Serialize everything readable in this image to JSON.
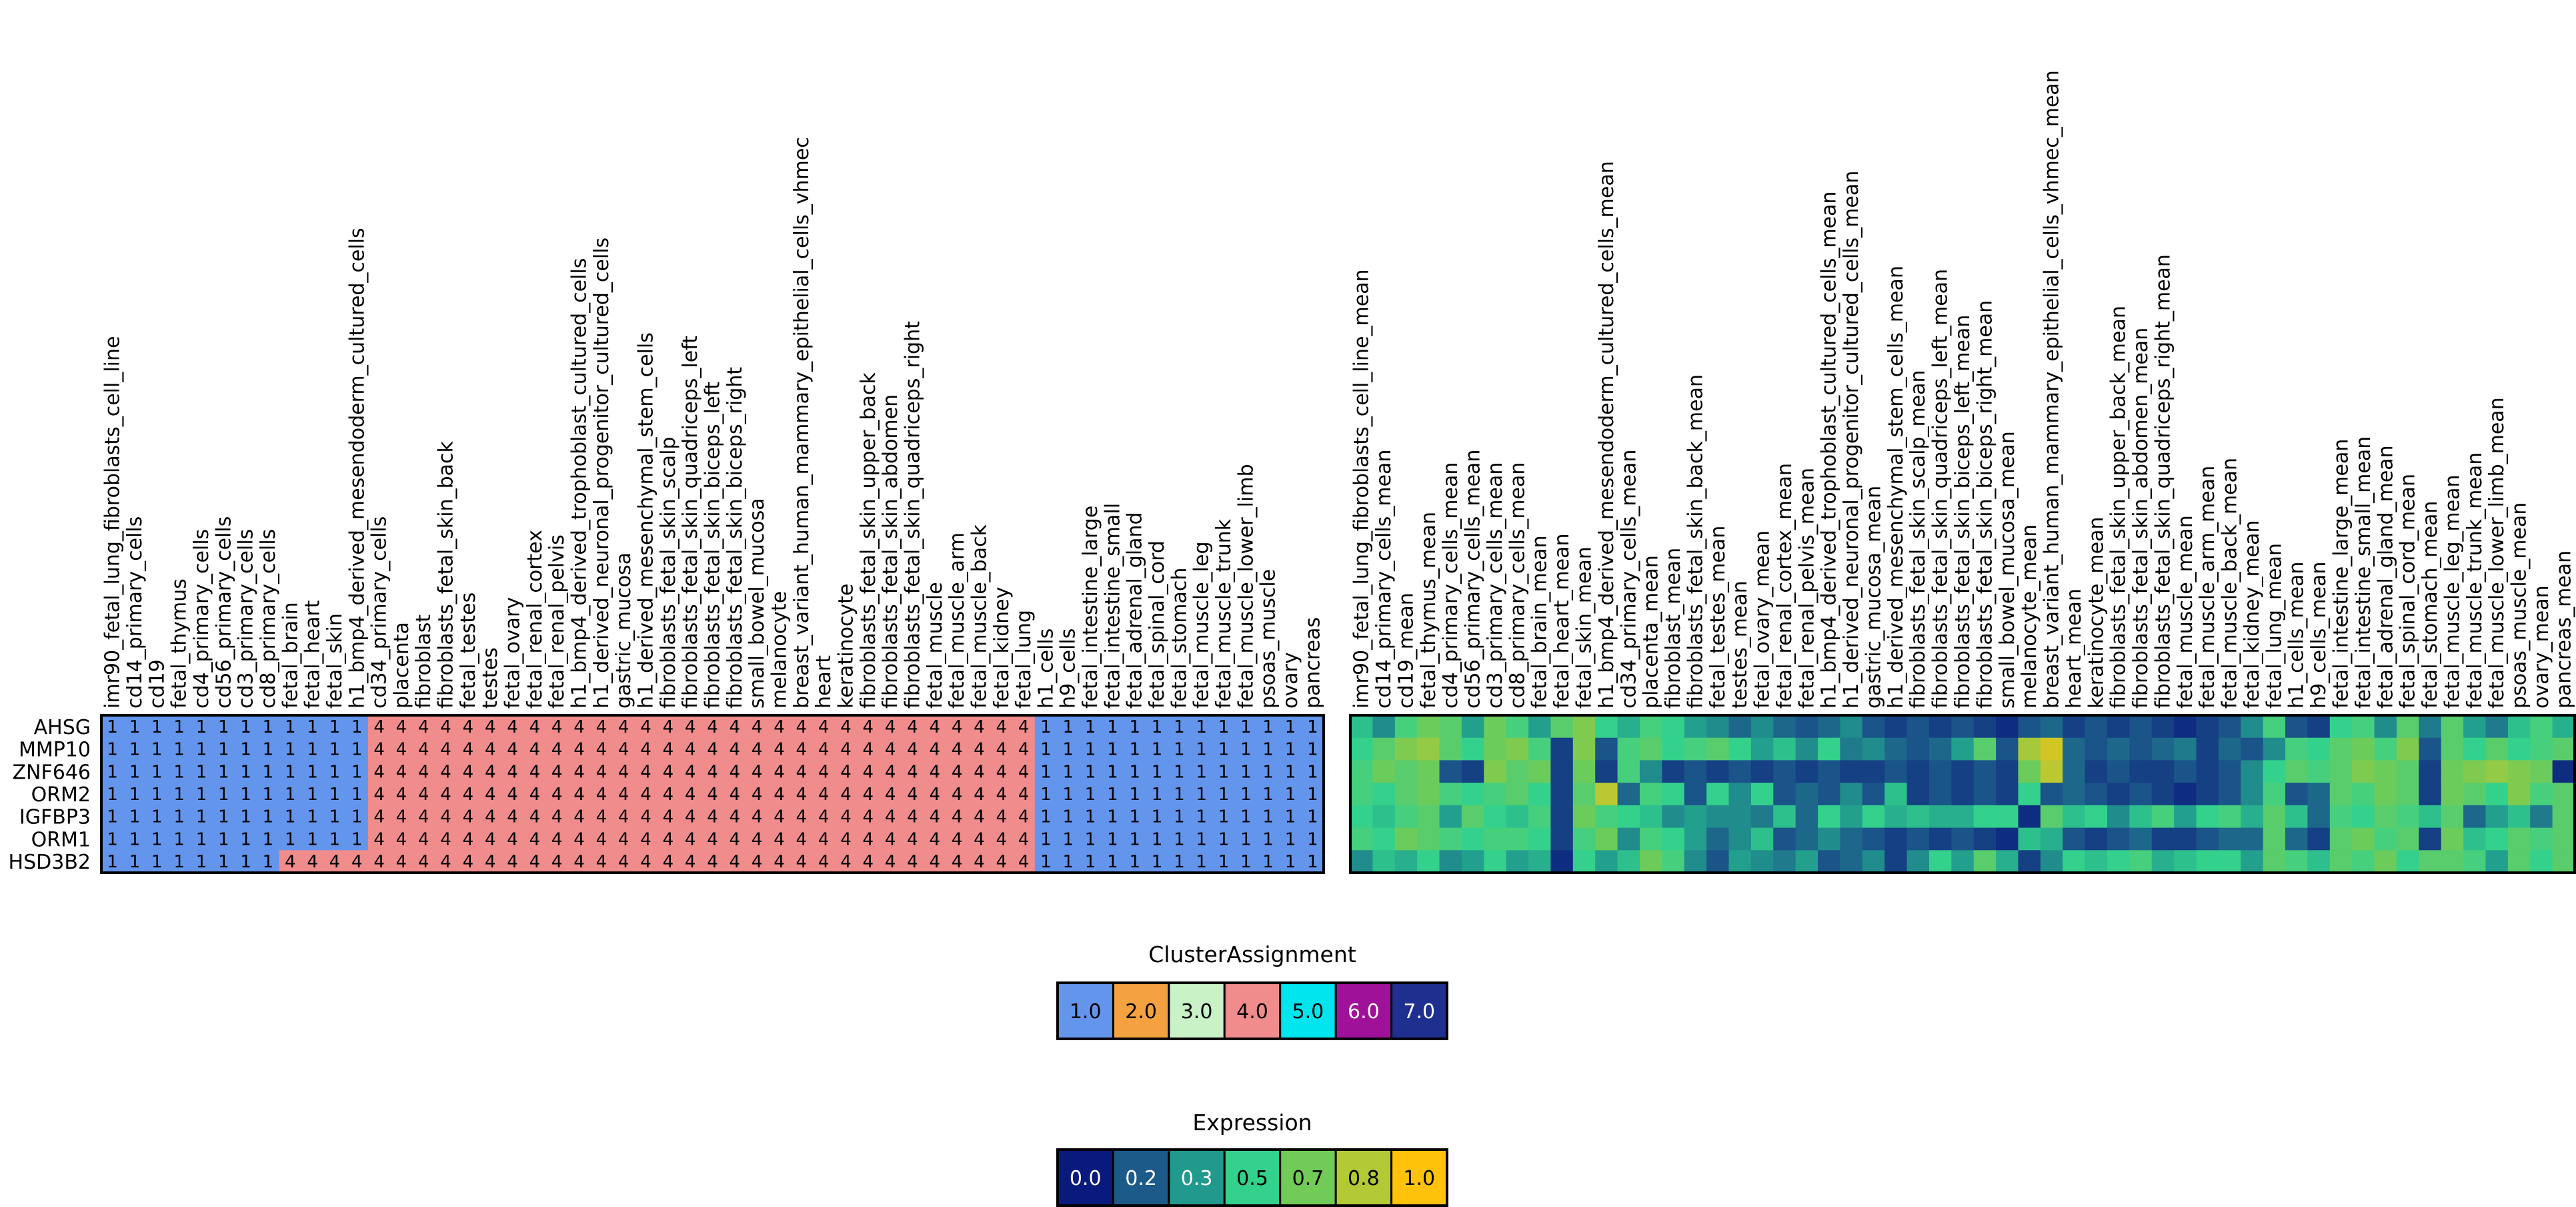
{
  "chart_data": [
    {
      "type": "heatmap",
      "panel": "cluster-assignment",
      "rows": [
        "AHSG",
        "MMP10",
        "ZNF646",
        "ORM2",
        "IGFBP3",
        "ORM1",
        "HSD3B2"
      ],
      "columns": [
        "imr90_fetal_lung_fibroblasts_cell_line",
        "cd14_primary_cells",
        "cd19",
        "fetal_thymus",
        "cd4_primary_cells",
        "cd56_primary_cells",
        "cd3_primary_cells",
        "cd8_primary_cells",
        "fetal_brain",
        "fetal_heart",
        "fetal_skin",
        "h1_bmp4_derived_mesendoderm_cultured_cells",
        "cd34_primary_cells",
        "placenta",
        "fibroblast",
        "fibroblasts_fetal_skin_back",
        "fetal_testes",
        "testes",
        "fetal_ovary",
        "fetal_renal_cortex",
        "fetal_renal_pelvis",
        "h1_bmp4_derived_trophoblast_cultured_cells",
        "h1_derived_neuronal_progenitor_cultured_cells",
        "gastric_mucosa",
        "h1_derived_mesenchymal_stem_cells",
        "fibroblasts_fetal_skin_scalp",
        "fibroblasts_fetal_skin_quadriceps_left",
        "fibroblasts_fetal_skin_biceps_left",
        "fibroblasts_fetal_skin_biceps_right",
        "small_bowel_mucosa",
        "melanocyte",
        "breast_variant_human_mammary_epithelial_cells_vhmec",
        "heart",
        "keratinocyte",
        "fibroblasts_fetal_skin_upper_back",
        "fibroblasts_fetal_skin_abdomen",
        "fibroblasts_fetal_skin_quadriceps_right",
        "fetal_muscle",
        "fetal_muscle_arm",
        "fetal_muscle_back",
        "fetal_kidney",
        "fetal_lung",
        "h1_cells",
        "h9_cells",
        "fetal_intestine_large",
        "fetal_intestine_small",
        "fetal_adrenal_gland",
        "fetal_spinal_cord",
        "fetal_stomach",
        "fetal_muscle_leg",
        "fetal_muscle_trunk",
        "fetal_muscle_lower_limb",
        "psoas_muscle",
        "ovary",
        "pancreas"
      ],
      "values": [
        [
          1,
          1,
          1,
          1,
          1,
          1,
          1,
          1,
          1,
          1,
          1,
          1,
          4,
          4,
          4,
          4,
          4,
          4,
          4,
          4,
          4,
          4,
          4,
          4,
          4,
          4,
          4,
          4,
          4,
          4,
          4,
          4,
          4,
          4,
          4,
          4,
          4,
          4,
          4,
          4,
          4,
          4,
          1,
          1,
          1,
          1,
          1,
          1,
          1,
          1,
          1,
          1,
          1,
          1,
          1
        ],
        [
          1,
          1,
          1,
          1,
          1,
          1,
          1,
          1,
          1,
          1,
          1,
          1,
          4,
          4,
          4,
          4,
          4,
          4,
          4,
          4,
          4,
          4,
          4,
          4,
          4,
          4,
          4,
          4,
          4,
          4,
          4,
          4,
          4,
          4,
          4,
          4,
          4,
          4,
          4,
          4,
          4,
          4,
          1,
          1,
          1,
          1,
          1,
          1,
          1,
          1,
          1,
          1,
          1,
          1,
          1
        ],
        [
          1,
          1,
          1,
          1,
          1,
          1,
          1,
          1,
          1,
          1,
          1,
          1,
          4,
          4,
          4,
          4,
          4,
          4,
          4,
          4,
          4,
          4,
          4,
          4,
          4,
          4,
          4,
          4,
          4,
          4,
          4,
          4,
          4,
          4,
          4,
          4,
          4,
          4,
          4,
          4,
          4,
          4,
          1,
          1,
          1,
          1,
          1,
          1,
          1,
          1,
          1,
          1,
          1,
          1,
          1
        ],
        [
          1,
          1,
          1,
          1,
          1,
          1,
          1,
          1,
          1,
          1,
          1,
          1,
          4,
          4,
          4,
          4,
          4,
          4,
          4,
          4,
          4,
          4,
          4,
          4,
          4,
          4,
          4,
          4,
          4,
          4,
          4,
          4,
          4,
          4,
          4,
          4,
          4,
          4,
          4,
          4,
          4,
          4,
          1,
          1,
          1,
          1,
          1,
          1,
          1,
          1,
          1,
          1,
          1,
          1,
          1
        ],
        [
          1,
          1,
          1,
          1,
          1,
          1,
          1,
          1,
          1,
          1,
          1,
          1,
          4,
          4,
          4,
          4,
          4,
          4,
          4,
          4,
          4,
          4,
          4,
          4,
          4,
          4,
          4,
          4,
          4,
          4,
          4,
          4,
          4,
          4,
          4,
          4,
          4,
          4,
          4,
          4,
          4,
          4,
          1,
          1,
          1,
          1,
          1,
          1,
          1,
          1,
          1,
          1,
          1,
          1,
          1
        ],
        [
          1,
          1,
          1,
          1,
          1,
          1,
          1,
          1,
          1,
          1,
          1,
          1,
          4,
          4,
          4,
          4,
          4,
          4,
          4,
          4,
          4,
          4,
          4,
          4,
          4,
          4,
          4,
          4,
          4,
          4,
          4,
          4,
          4,
          4,
          4,
          4,
          4,
          4,
          4,
          4,
          4,
          4,
          1,
          1,
          1,
          1,
          1,
          1,
          1,
          1,
          1,
          1,
          1,
          1,
          1
        ],
        [
          1,
          1,
          1,
          1,
          1,
          1,
          1,
          1,
          4,
          4,
          4,
          4,
          4,
          4,
          4,
          4,
          4,
          4,
          4,
          4,
          4,
          4,
          4,
          4,
          4,
          4,
          4,
          4,
          4,
          4,
          4,
          4,
          4,
          4,
          4,
          4,
          4,
          4,
          4,
          4,
          4,
          4,
          1,
          1,
          1,
          1,
          1,
          1,
          1,
          1,
          1,
          1,
          1,
          1,
          1
        ]
      ],
      "legend": {
        "title": "ClusterAssignment",
        "labels": [
          "1.0",
          "2.0",
          "3.0",
          "4.0",
          "5.0",
          "6.0",
          "7.0"
        ],
        "colors": [
          "#6495ED",
          "#F4A140",
          "#C9F2C7",
          "#F08C8C",
          "#00E5EE",
          "#A0119A",
          "#1F2F8F"
        ]
      }
    },
    {
      "type": "heatmap",
      "panel": "expression",
      "rows": [
        "AHSG",
        "MMP10",
        "ZNF646",
        "ORM2",
        "IGFBP3",
        "ORM1",
        "HSD3B2"
      ],
      "columns": [
        "imr90_fetal_lung_fibroblasts_cell_line_mean",
        "cd14_primary_cells_mean",
        "cd19_mean",
        "fetal_thymus_mean",
        "cd4_primary_cells_mean",
        "cd56_primary_cells_mean",
        "cd3_primary_cells_mean",
        "cd8_primary_cells_mean",
        "fetal_brain_mean",
        "fetal_heart_mean",
        "fetal_skin_mean",
        "h1_bmp4_derived_mesendoderm_cultured_cells_mean",
        "cd34_primary_cells_mean",
        "placenta_mean",
        "fibroblast_mean",
        "fibroblasts_fetal_skin_back_mean",
        "fetal_testes_mean",
        "testes_mean",
        "fetal_ovary_mean",
        "fetal_renal_cortex_mean",
        "fetal_renal_pelvis_mean",
        "h1_bmp4_derived_trophoblast_cultured_cells_mean",
        "h1_derived_neuronal_progenitor_cultured_cells_mean",
        "gastric_mucosa_mean",
        "h1_derived_mesenchymal_stem_cells_mean",
        "fibroblasts_fetal_skin_scalp_mean",
        "fibroblasts_fetal_skin_quadriceps_left_mean",
        "fibroblasts_fetal_skin_biceps_left_mean",
        "fibroblasts_fetal_skin_biceps_right_mean",
        "small_bowel_mucosa_mean",
        "melanocyte_mean",
        "breast_variant_human_mammary_epithelial_cells_vhmec_mean",
        "heart_mean",
        "keratinocyte_mean",
        "fibroblasts_fetal_skin_upper_back_mean",
        "fibroblasts_fetal_skin_abdomen_mean",
        "fibroblasts_fetal_skin_quadriceps_right_mean",
        "fetal_muscle_mean",
        "fetal_muscle_arm_mean",
        "fetal_muscle_back_mean",
        "fetal_kidney_mean",
        "fetal_lung_mean",
        "h1_cells_mean",
        "h9_cells_mean",
        "fetal_intestine_large_mean",
        "fetal_intestine_small_mean",
        "fetal_adrenal_gland_mean",
        "fetal_spinal_cord_mean",
        "fetal_stomach_mean",
        "fetal_muscle_leg_mean",
        "fetal_muscle_trunk_mean",
        "fetal_muscle_lower_limb_mean",
        "psoas_muscle_mean",
        "ovary_mean",
        "pancreas_mean"
      ],
      "values": [
        [
          0.45,
          0.3,
          0.55,
          0.65,
          0.6,
          0.35,
          0.65,
          0.55,
          0.35,
          0.6,
          0.7,
          0.5,
          0.4,
          0.55,
          0.5,
          0.35,
          0.3,
          0.2,
          0.3,
          0.2,
          0.15,
          0.2,
          0.3,
          0.15,
          0.1,
          0.15,
          0.1,
          0.15,
          0.1,
          0.05,
          0.15,
          0.2,
          0.1,
          0.15,
          0.1,
          0.15,
          0.1,
          0.05,
          0.1,
          0.15,
          0.3,
          0.55,
          0.15,
          0.1,
          0.5,
          0.55,
          0.3,
          0.6,
          0.25,
          0.6,
          0.35,
          0.25,
          0.45,
          0.55,
          0.4
        ],
        [
          0.5,
          0.6,
          0.7,
          0.75,
          0.6,
          0.5,
          0.65,
          0.7,
          0.55,
          0.1,
          0.7,
          0.15,
          0.55,
          0.6,
          0.5,
          0.55,
          0.6,
          0.5,
          0.35,
          0.45,
          0.3,
          0.5,
          0.25,
          0.3,
          0.2,
          0.15,
          0.2,
          0.35,
          0.6,
          0.15,
          0.8,
          0.9,
          0.2,
          0.15,
          0.2,
          0.15,
          0.2,
          0.25,
          0.1,
          0.2,
          0.15,
          0.3,
          0.55,
          0.5,
          0.6,
          0.65,
          0.55,
          0.7,
          0.15,
          0.6,
          0.5,
          0.6,
          0.5,
          0.55,
          0.6
        ],
        [
          0.55,
          0.65,
          0.6,
          0.65,
          0.15,
          0.1,
          0.7,
          0.6,
          0.65,
          0.1,
          0.65,
          0.1,
          0.55,
          0.3,
          0.1,
          0.15,
          0.1,
          0.15,
          0.1,
          0.15,
          0.1,
          0.15,
          0.1,
          0.1,
          0.15,
          0.1,
          0.15,
          0.1,
          0.15,
          0.1,
          0.65,
          0.85,
          0.2,
          0.1,
          0.15,
          0.1,
          0.1,
          0.15,
          0.1,
          0.15,
          0.3,
          0.5,
          0.6,
          0.55,
          0.6,
          0.7,
          0.65,
          0.6,
          0.1,
          0.65,
          0.7,
          0.75,
          0.7,
          0.65,
          0.05
        ],
        [
          0.55,
          0.5,
          0.6,
          0.65,
          0.55,
          0.5,
          0.55,
          0.6,
          0.5,
          0.1,
          0.6,
          0.85,
          0.2,
          0.55,
          0.5,
          0.15,
          0.5,
          0.3,
          0.5,
          0.15,
          0.2,
          0.15,
          0.3,
          0.15,
          0.45,
          0.1,
          0.15,
          0.1,
          0.15,
          0.1,
          0.5,
          0.15,
          0.2,
          0.15,
          0.1,
          0.15,
          0.1,
          0.05,
          0.1,
          0.15,
          0.3,
          0.55,
          0.15,
          0.2,
          0.6,
          0.55,
          0.65,
          0.6,
          0.1,
          0.65,
          0.6,
          0.5,
          0.7,
          0.55,
          0.6
        ],
        [
          0.5,
          0.45,
          0.55,
          0.6,
          0.35,
          0.6,
          0.5,
          0.45,
          0.55,
          0.1,
          0.65,
          0.55,
          0.5,
          0.45,
          0.3,
          0.35,
          0.3,
          0.3,
          0.25,
          0.45,
          0.2,
          0.5,
          0.35,
          0.5,
          0.4,
          0.45,
          0.4,
          0.4,
          0.5,
          0.5,
          0.05,
          0.6,
          0.45,
          0.5,
          0.3,
          0.45,
          0.55,
          0.35,
          0.5,
          0.55,
          0.4,
          0.6,
          0.45,
          0.2,
          0.55,
          0.5,
          0.6,
          0.55,
          0.45,
          0.6,
          0.2,
          0.35,
          0.45,
          0.25,
          0.6
        ],
        [
          0.55,
          0.5,
          0.65,
          0.6,
          0.55,
          0.5,
          0.55,
          0.55,
          0.5,
          0.1,
          0.55,
          0.65,
          0.3,
          0.55,
          0.5,
          0.35,
          0.2,
          0.3,
          0.45,
          0.15,
          0.2,
          0.3,
          0.2,
          0.15,
          0.1,
          0.15,
          0.1,
          0.15,
          0.1,
          0.05,
          0.45,
          0.4,
          0.15,
          0.1,
          0.15,
          0.2,
          0.1,
          0.1,
          0.15,
          0.2,
          0.2,
          0.6,
          0.2,
          0.1,
          0.6,
          0.65,
          0.55,
          0.6,
          0.1,
          0.65,
          0.45,
          0.5,
          0.6,
          0.55,
          0.6
        ],
        [
          0.3,
          0.45,
          0.4,
          0.5,
          0.3,
          0.35,
          0.5,
          0.35,
          0.4,
          0.05,
          0.5,
          0.35,
          0.45,
          0.65,
          0.55,
          0.3,
          0.15,
          0.35,
          0.3,
          0.25,
          0.35,
          0.15,
          0.2,
          0.3,
          0.1,
          0.3,
          0.5,
          0.35,
          0.6,
          0.4,
          0.1,
          0.3,
          0.5,
          0.45,
          0.5,
          0.55,
          0.4,
          0.45,
          0.5,
          0.5,
          0.35,
          0.6,
          0.55,
          0.45,
          0.6,
          0.55,
          0.65,
          0.5,
          0.6,
          0.6,
          0.55,
          0.35,
          0.6,
          0.5,
          0.6
        ]
      ],
      "legend": {
        "title": "Expression",
        "labels": [
          "0.0",
          "0.2",
          "0.3",
          "0.5",
          "0.7",
          "0.8",
          "1.0"
        ],
        "colors": [
          "#0A1A7C",
          "#1C5A8A",
          "#21998D",
          "#33D18C",
          "#72CB56",
          "#B3C935",
          "#FFC20A"
        ]
      }
    }
  ]
}
